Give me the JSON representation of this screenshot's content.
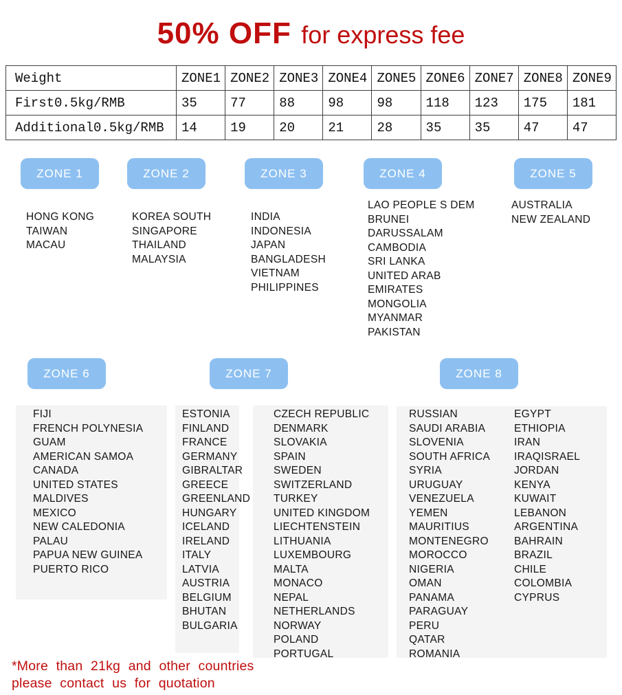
{
  "title": {
    "highlight": "50% OFF",
    "rest": "for express fee"
  },
  "colors": {
    "accent_red": "#C00D0D",
    "button_blue": "#8DC0F1",
    "panel_gray": "#F4F4F4",
    "table_border": "#3F3F3F"
  },
  "rate_table": {
    "columns": [
      "Weight",
      "ZONE1",
      "ZONE2",
      "ZONE3",
      "ZONE4",
      "ZONE5",
      "ZONE6",
      "ZONE7",
      "ZONE8",
      "ZONE9"
    ],
    "rows": [
      {
        "label": "First0.5kg/RMB",
        "values": [
          "35",
          "77",
          "88",
          "98",
          "98",
          "118",
          "123",
          "175",
          "181"
        ]
      },
      {
        "label": "Additional0.5kg/RMB",
        "values": [
          "14",
          "19",
          "20",
          "21",
          "28",
          "35",
          "35",
          "47",
          "47"
        ]
      }
    ]
  },
  "zones": [
    {
      "label": "ZONE 1",
      "columns": [
        [
          "HONG KONG",
          "TAIWAN",
          "MACAU"
        ]
      ]
    },
    {
      "label": "ZONE 2",
      "columns": [
        [
          "KOREA SOUTH",
          "SINGAPORE",
          "THAILAND",
          "MALAYSIA"
        ]
      ]
    },
    {
      "label": "ZONE 3",
      "columns": [
        [
          "INDIA",
          "INDONESIA",
          "JAPAN",
          "BANGLADESH",
          "VIETNAM",
          "PHILIPPINES"
        ]
      ]
    },
    {
      "label": "ZONE 4",
      "columns": [
        [
          "LAO PEOPLE S DEM",
          "BRUNEI",
          "DARUSSALAM",
          "CAMBODIA",
          "SRI LANKA",
          "UNITED ARAB",
          "EMIRATES",
          "MONGOLIA",
          "MYANMAR",
          "PAKISTAN"
        ]
      ]
    },
    {
      "label": "ZONE 5",
      "columns": [
        [
          "AUSTRALIA",
          "NEW ZEALAND"
        ]
      ]
    },
    {
      "label": "ZONE 6",
      "columns": [
        [
          "FIJI",
          "FRENCH POLYNESIA",
          "GUAM",
          "AMERICAN SAMOA",
          "CANADA",
          "UNITED STATES",
          "MALDIVES",
          "MEXICO",
          "NEW CALEDONIA",
          "PALAU",
          "PAPUA NEW GUINEA",
          "PUERTO RICO"
        ]
      ]
    },
    {
      "label": "ZONE 7",
      "columns": [
        [
          "ESTONIA",
          "FINLAND",
          "FRANCE",
          "GERMANY",
          "GIBRALTAR",
          "GREECE",
          "GREENLAND",
          "HUNGARY",
          "ICELAND",
          "IRELAND",
          "ITALY",
          "LATVIA",
          "AUSTRIA",
          "BELGIUM",
          "BHUTAN",
          "BULGARIA"
        ],
        [
          "CZECH REPUBLIC",
          "DENMARK",
          "SLOVAKIA",
          "SPAIN",
          "SWEDEN",
          "SWITZERLAND",
          "TURKEY",
          "UNITED KINGDOM",
          "LIECHTENSTEIN",
          "LITHUANIA",
          "LUXEMBOURG",
          "MALTA",
          "MONACO",
          "NEPAL",
          "NETHERLANDS",
          "NORWAY",
          "POLAND",
          "PORTUGAL"
        ]
      ]
    },
    {
      "label": "ZONE 8",
      "columns": [
        [
          "RUSSIAN",
          "SAUDI ARABIA",
          "SLOVENIA",
          "SOUTH AFRICA",
          "SYRIA",
          "URUGUAY",
          "VENEZUELA",
          "YEMEN",
          "MAURITIUS",
          "MONTENEGRO",
          "MOROCCO",
          "NIGERIA",
          "OMAN",
          "PANAMA",
          "PARAGUAY",
          "PERU",
          "QATAR",
          "ROMANIA"
        ],
        [
          "EGYPT",
          "ETHIOPIA",
          "IRAN",
          "IRAQISRAEL",
          "JORDAN",
          "KENYA",
          "KUWAIT",
          "LEBANON",
          "ARGENTINA",
          "BAHRAIN",
          "BRAZIL",
          "CHILE",
          "COLOMBIA",
          "CYPRUS"
        ]
      ]
    }
  ],
  "note": {
    "line1": "*More than 21kg and other countries",
    "line2": "please contact us for quotation"
  }
}
